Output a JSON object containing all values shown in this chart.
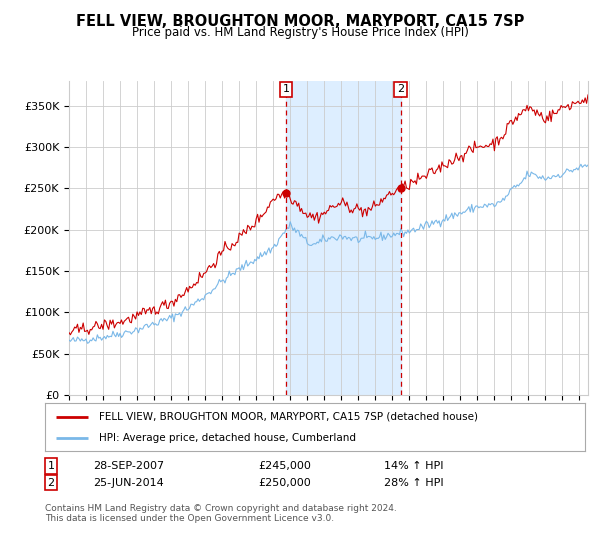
{
  "title": "FELL VIEW, BROUGHTON MOOR, MARYPORT, CA15 7SP",
  "subtitle": "Price paid vs. HM Land Registry's House Price Index (HPI)",
  "legend_entry1": "FELL VIEW, BROUGHTON MOOR, MARYPORT, CA15 7SP (detached house)",
  "legend_entry2": "HPI: Average price, detached house, Cumberland",
  "transaction1_date": "28-SEP-2007",
  "transaction1_price": 245000,
  "transaction1_hpi": "14% ↑ HPI",
  "transaction1_label": "1",
  "transaction2_date": "25-JUN-2014",
  "transaction2_price": 250000,
  "transaction2_hpi": "28% ↑ HPI",
  "transaction2_label": "2",
  "footer": "Contains HM Land Registry data © Crown copyright and database right 2024.\nThis data is licensed under the Open Government Licence v3.0.",
  "ylim": [
    0,
    380000
  ],
  "hpi_color": "#7ab8e8",
  "price_color": "#cc0000",
  "shade_color": "#ddeeff",
  "grid_color": "#cccccc",
  "marker1_x": 2007.75,
  "marker2_x": 2014.5,
  "background_color": "#ffffff",
  "yticks": [
    0,
    50000,
    100000,
    150000,
    200000,
    250000,
    300000,
    350000
  ],
  "xlim_start": 1995.0,
  "xlim_end": 2025.5
}
